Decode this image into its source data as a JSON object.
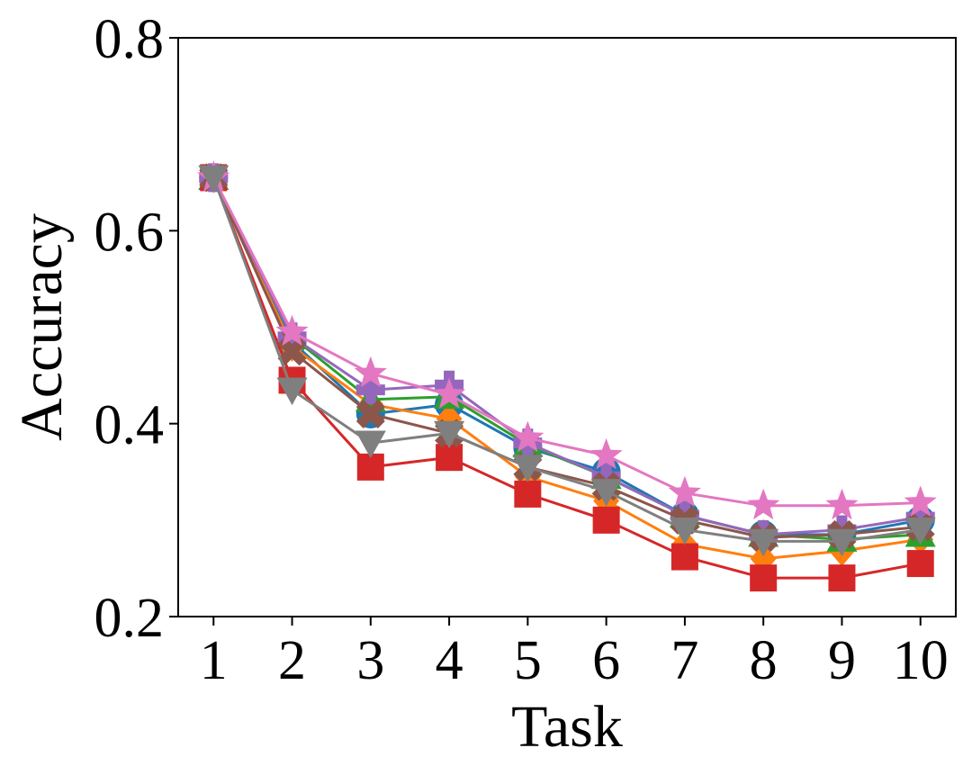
{
  "chart_data": {
    "type": "line",
    "title": "",
    "xlabel": "Task",
    "ylabel": "Accuracy",
    "x": [
      1,
      2,
      3,
      4,
      5,
      6,
      7,
      8,
      9,
      10
    ],
    "xlim": [
      0.55,
      10.45
    ],
    "ylim": [
      0.2,
      0.8
    ],
    "yticks": [
      0.2,
      0.4,
      0.6,
      0.8
    ],
    "ytick_labels": [
      "0.2",
      "0.4",
      "0.6",
      "0.8"
    ],
    "xtick_labels": [
      "1",
      "2",
      "3",
      "4",
      "5",
      "6",
      "7",
      "8",
      "9",
      "10"
    ],
    "grid": false,
    "legend": false,
    "series": [
      {
        "color": "#1f77b4",
        "marker": "circle",
        "values": [
          0.655,
          0.485,
          0.41,
          0.42,
          0.375,
          0.35,
          0.305,
          0.285,
          0.285,
          0.3
        ]
      },
      {
        "color": "#ff7f0e",
        "marker": "diamond",
        "values": [
          0.655,
          0.48,
          0.42,
          0.405,
          0.345,
          0.32,
          0.275,
          0.26,
          0.268,
          0.28
        ]
      },
      {
        "color": "#2ca02c",
        "marker": "triangle-up",
        "values": [
          0.655,
          0.49,
          0.425,
          0.428,
          0.378,
          0.345,
          0.305,
          0.285,
          0.28,
          0.285
        ]
      },
      {
        "color": "#d62728",
        "marker": "square",
        "values": [
          0.655,
          0.445,
          0.355,
          0.365,
          0.327,
          0.3,
          0.262,
          0.24,
          0.24,
          0.255
        ]
      },
      {
        "color": "#9467bd",
        "marker": "plus",
        "values": [
          0.655,
          0.49,
          0.435,
          0.44,
          0.38,
          0.345,
          0.305,
          0.285,
          0.29,
          0.303
        ]
      },
      {
        "color": "#8c564b",
        "marker": "x",
        "values": [
          0.655,
          0.475,
          0.41,
          0.39,
          0.355,
          0.335,
          0.3,
          0.282,
          0.285,
          0.293
        ]
      },
      {
        "color": "#e377c2",
        "marker": "star",
        "values": [
          0.655,
          0.495,
          0.452,
          0.43,
          0.385,
          0.367,
          0.328,
          0.315,
          0.315,
          0.318
        ]
      },
      {
        "color": "#7f7f7f",
        "marker": "triangle-down",
        "values": [
          0.655,
          0.435,
          0.38,
          0.39,
          0.355,
          0.33,
          0.29,
          0.278,
          0.278,
          0.29
        ]
      }
    ]
  }
}
